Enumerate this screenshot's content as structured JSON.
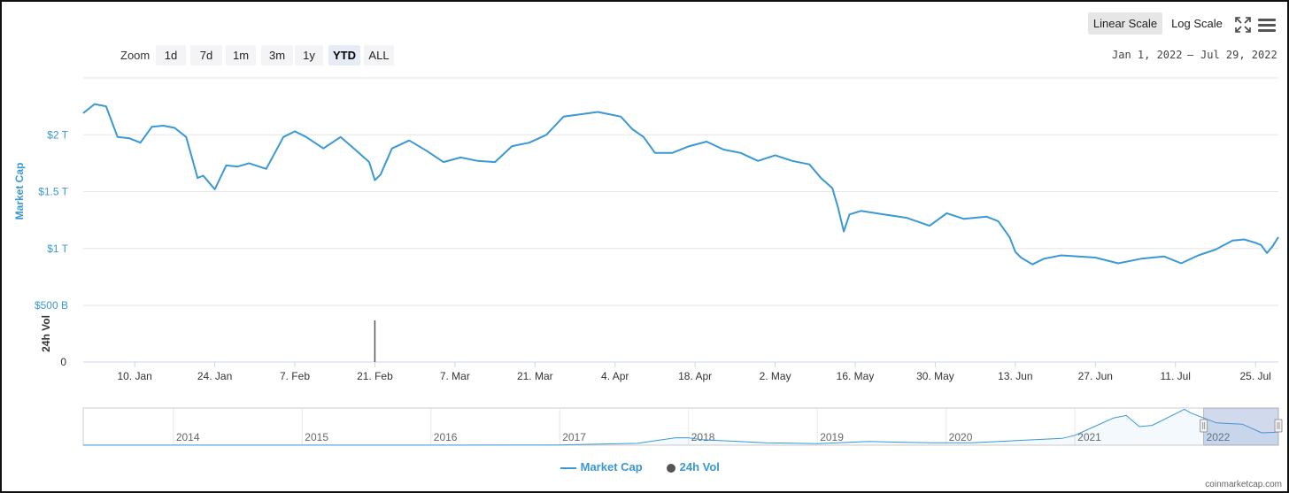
{
  "toolbar": {
    "zoom_label": "Zoom",
    "zoom_buttons": [
      "1d",
      "7d",
      "1m",
      "3m",
      "1y",
      "YTD",
      "ALL"
    ],
    "active_zoom": "YTD",
    "scale_linear": "Linear Scale",
    "scale_log": "Log Scale",
    "active_scale": "Linear Scale",
    "range_from": "Jan 1, 2022",
    "range_sep": "—",
    "range_to": "Jul 29, 2022"
  },
  "icons": {
    "fullscreen": "fullscreen-icon",
    "menu": "menu-icon"
  },
  "colors": {
    "line": "#3a98d4",
    "volume": "#555555",
    "grid": "#e6e6e6",
    "nav_mask": "rgba(102,133,194,0.3)"
  },
  "watermark": "coinmarketcap.com",
  "chart_data": [
    {
      "type": "line",
      "ylabel": "Market Cap",
      "x_tick_labels": [
        "10. Jan",
        "24. Jan",
        "7. Feb",
        "21. Feb",
        "7. Mar",
        "21. Mar",
        "4. Apr",
        "18. Apr",
        "2. May",
        "16. May",
        "30. May",
        "13. Jun",
        "27. Jun",
        "11. Jul",
        "25. Jul"
      ],
      "x_ticks_day": [
        9,
        23,
        37,
        51,
        65,
        79,
        93,
        107,
        121,
        135,
        149,
        163,
        177,
        191,
        205
      ],
      "y_tick_labels": [
        "$500 B",
        "$1 T",
        "$1.5 T",
        "$2 T"
      ],
      "y_ticks": [
        0.5,
        1.0,
        1.5,
        2.0
      ],
      "xlim_day": [
        0,
        209
      ],
      "ylim": [
        0.5,
        2.5
      ],
      "grid": true,
      "series": [
        {
          "name": "Market Cap",
          "day": [
            0,
            2,
            4,
            6,
            8,
            10,
            12,
            14,
            16,
            18,
            20,
            21,
            22,
            23,
            25,
            27,
            29,
            32,
            35,
            37,
            39,
            42,
            45,
            48,
            50,
            51,
            52,
            54,
            57,
            60,
            63,
            66,
            69,
            72,
            75,
            78,
            81,
            84,
            87,
            90,
            92,
            94,
            96,
            98,
            100,
            103,
            106,
            109,
            112,
            115,
            118,
            121,
            124,
            127,
            129,
            131,
            132,
            133,
            134,
            136,
            140,
            144,
            148,
            151,
            154,
            158,
            160,
            162,
            163,
            164,
            166,
            168,
            171,
            174,
            177,
            181,
            185,
            189,
            192,
            195,
            198,
            201,
            203,
            205,
            206,
            207,
            208,
            209
          ],
          "values": [
            2.19,
            2.27,
            2.25,
            1.98,
            1.97,
            1.93,
            2.07,
            2.08,
            2.06,
            1.98,
            1.62,
            1.64,
            1.58,
            1.52,
            1.73,
            1.72,
            1.75,
            1.7,
            1.98,
            2.03,
            1.98,
            1.88,
            1.98,
            1.85,
            1.76,
            1.6,
            1.65,
            1.88,
            1.95,
            1.86,
            1.76,
            1.8,
            1.77,
            1.76,
            1.9,
            1.93,
            2.0,
            2.16,
            2.18,
            2.2,
            2.18,
            2.16,
            2.05,
            1.98,
            1.84,
            1.84,
            1.9,
            1.94,
            1.87,
            1.84,
            1.77,
            1.82,
            1.77,
            1.74,
            1.62,
            1.53,
            1.36,
            1.15,
            1.3,
            1.33,
            1.3,
            1.27,
            1.2,
            1.31,
            1.26,
            1.28,
            1.24,
            1.1,
            0.97,
            0.92,
            0.86,
            0.91,
            0.94,
            0.93,
            0.92,
            0.87,
            0.91,
            0.93,
            0.87,
            0.94,
            0.99,
            1.07,
            1.08,
            1.05,
            1.03,
            0.96,
            1.02,
            1.1
          ]
        }
      ]
    },
    {
      "type": "bar",
      "ylabel": "24h Vol",
      "y_tick_labels": [
        "0"
      ],
      "y_ticks": [
        0
      ],
      "series": [
        {
          "name": "24h Vol",
          "day": [
            51
          ],
          "values": [
            1.0
          ]
        }
      ]
    },
    {
      "type": "area",
      "x_tick_labels": [
        "2014",
        "2015",
        "2016",
        "2017",
        "2018",
        "2019",
        "2020",
        "2021",
        "2022"
      ],
      "x_ticks_year": [
        2014,
        2015,
        2016,
        2017,
        2018,
        2019,
        2020,
        2021,
        2022
      ],
      "xlim_year": [
        2013.3,
        2022.58
      ],
      "ylim": [
        0,
        3.0
      ],
      "selection_year": [
        2022.0,
        2022.58
      ],
      "series": [
        {
          "year": [
            2013.3,
            2014.0,
            2015.0,
            2016.0,
            2017.0,
            2017.6,
            2017.9,
            2018.0,
            2018.1,
            2018.3,
            2018.6,
            2019.0,
            2019.4,
            2019.6,
            2019.9,
            2020.2,
            2020.9,
            2021.0,
            2021.15,
            2021.3,
            2021.4,
            2021.5,
            2021.6,
            2021.85,
            2021.9,
            2022.0,
            2022.1,
            2022.3,
            2022.45,
            2022.58
          ],
          "values": [
            0.01,
            0.01,
            0.005,
            0.01,
            0.02,
            0.15,
            0.6,
            0.6,
            0.45,
            0.35,
            0.2,
            0.12,
            0.3,
            0.25,
            0.2,
            0.2,
            0.55,
            0.8,
            1.5,
            2.2,
            2.4,
            1.5,
            1.6,
            2.9,
            2.6,
            2.2,
            1.8,
            1.7,
            1.0,
            1.05
          ]
        }
      ]
    }
  ]
}
